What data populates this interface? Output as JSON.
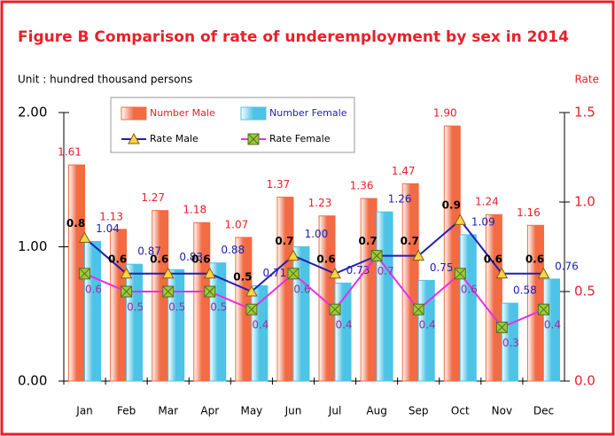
{
  "chart_data": {
    "type": "bar",
    "title": "Figure B Comparison of rate of underemployment by sex in 2014",
    "y_label": "Unit : hundred thousand persons",
    "y2_label": "Rate",
    "categories": [
      "Jan",
      "Feb",
      "Mar",
      "Apr",
      "May",
      "Jun",
      "Jul",
      "Aug",
      "Sep",
      "Oct",
      "Nov",
      "Dec"
    ],
    "series": [
      {
        "name": "Number Male",
        "type": "bar",
        "color": "#f26b43",
        "values": [
          1.61,
          1.13,
          1.27,
          1.18,
          1.07,
          1.37,
          1.23,
          1.36,
          1.47,
          1.9,
          1.24,
          1.16
        ],
        "value_labels": [
          "1.61",
          "1.13",
          "1.27",
          "1.18",
          "1.07",
          "1.37",
          "1.23",
          "1.36",
          "1.47",
          "1.90",
          "1.24",
          "1.16"
        ]
      },
      {
        "name": "Number Female",
        "type": "bar",
        "color": "#4dc3e6",
        "values": [
          1.04,
          0.87,
          0.83,
          0.88,
          0.71,
          1,
          0.73,
          1.26,
          0.75,
          1.09,
          0.58,
          0.76
        ],
        "value_labels": [
          "1.04",
          "0.87",
          "0.83",
          "0.88",
          "0.71",
          "1.00",
          "0.73",
          "1.26",
          "0.75",
          "1.09",
          "0.58",
          "0.76"
        ]
      },
      {
        "name": "Rate Male",
        "type": "line",
        "axis": "y2",
        "color": "#1f1fb4",
        "values": [
          0.8,
          0.6,
          0.6,
          0.6,
          0.5,
          0.7,
          0.6,
          0.7,
          0.7,
          0.9,
          0.6,
          0.6
        ]
      },
      {
        "name": "Rate Female",
        "type": "line",
        "axis": "y2",
        "color": "#e62ee6",
        "values": [
          0.6,
          0.5,
          0.5,
          0.5,
          0.4,
          0.6,
          0.4,
          0.7,
          0.4,
          0.6,
          0.3,
          0.4
        ]
      }
    ],
    "ylim": [
      0,
      2
    ],
    "yticks": [
      {
        "value": 0,
        "label": "0.00"
      },
      {
        "value": 1,
        "label": "1.00"
      },
      {
        "value": 2,
        "label": "2.00"
      }
    ],
    "y2lim": [
      0,
      1.5
    ],
    "y2ticks": [
      {
        "value": 0,
        "label": "0.0"
      },
      0.5,
      {
        "value": 1,
        "label": "1.0"
      },
      1.5
    ]
  }
}
